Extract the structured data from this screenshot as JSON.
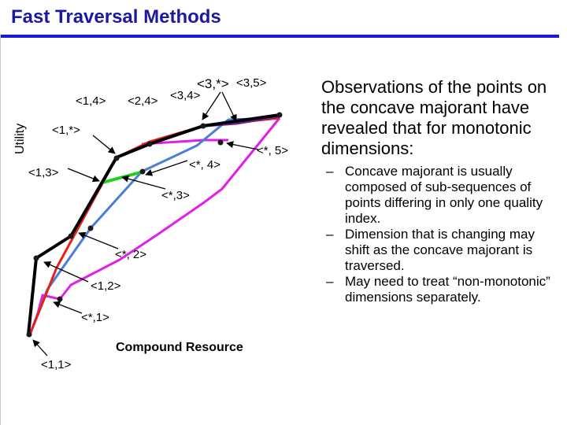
{
  "slide": {
    "title": "Fast Traversal Methods",
    "observation": "Observations of the points on the concave majorant have revealed that for monotonic dimensions:",
    "bullet_marker": "–",
    "bullets": [
      "Concave majorant is usually composed of sub-sequences of points differing in only one quality index.",
      "Dimension that is changing may shift as the concave majorant is traversed.",
      "May need to treat “non-monotonic” dimensions separately."
    ]
  },
  "diagram": {
    "y_axis_label": "Utility",
    "x_axis_label": "Compound Resource",
    "labels": {
      "p11": "<1,1>",
      "p12": "<1,2>",
      "p13": "<1,3>",
      "p14": "<1,4>",
      "p1s": "<1,*>",
      "p24": "<2,4>",
      "p34": "<3,4>",
      "p3s": "<3,*>",
      "p35": "<3,5>",
      "ps1": "<*,1>",
      "ps2": "<*, 2>",
      "ps3": "<*,3>",
      "ps4": "<*, 4>",
      "ps5": "<*, 5>"
    },
    "colors": {
      "majorant": "#000000",
      "dim1": "#e8201a",
      "dim2": "#4a7fd8",
      "magenta": "#e21ee8",
      "green": "#1fd01f",
      "purple": "#7a1a8c",
      "point": "#1a1a1a"
    }
  }
}
